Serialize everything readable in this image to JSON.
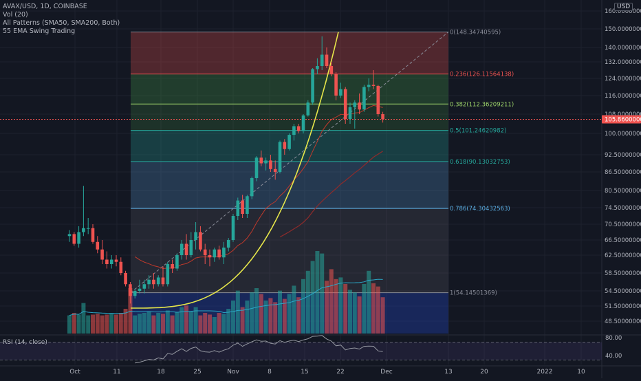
{
  "header": {
    "symbol_line": "AVAX/USD, 1D, COINBASE",
    "indicators": [
      "Vol (20)",
      "All Patterns (SMA50, SMA200, Both)",
      "55 EMA Swing Trading"
    ],
    "rsi_label": "RSI (14, close)",
    "currency_badge": "USD"
  },
  "colors": {
    "background": "#131722",
    "up": "#26a69a",
    "down": "#ef5350",
    "grid": "#1e222d",
    "axis_text": "#b2b5be",
    "last_price_bg": "#ef5350",
    "parabola": "#e6e64a",
    "ema": "#c0392b",
    "sma": "#8e2b2b",
    "vol_ma": "#2aa8c8",
    "rsi_line": "#9598a1"
  },
  "chart_data": {
    "type": "candlestick",
    "price_axis_ticks": [
      "160.00000000",
      "150.00000000",
      "140.00000000",
      "132.00000000",
      "124.00000000",
      "116.00000000",
      "108.00000000",
      "100.00000000",
      "92.50000000",
      "86.50000000",
      "80.50000000",
      "74.50000000",
      "70.50000000",
      "66.50000000",
      "62.50000000",
      "58.50000000",
      "54.50000000",
      "51.50000000",
      "48.50000000"
    ],
    "price_axis_values": [
      160,
      150,
      140,
      132,
      124,
      116,
      108,
      100,
      92.5,
      86.5,
      80.5,
      74.5,
      70.5,
      66.5,
      62.5,
      58.5,
      54.5,
      51.5,
      48.5
    ],
    "time_axis_labels": [
      "Oct",
      "11",
      "18",
      "25",
      "Nov",
      "8",
      "15",
      "22",
      "Dec",
      "13",
      "20",
      "2022",
      "10"
    ],
    "last_price": "105.86000000",
    "fibonacci": [
      {
        "label": "0(148.34740595)",
        "value": 148.3474,
        "color": "#8a8d99"
      },
      {
        "label": "0.236(126.11564138)",
        "value": 126.1156,
        "color": "#ef5350"
      },
      {
        "label": "0.382(112.36209211)",
        "value": 112.3621,
        "color": "#9ed46a"
      },
      {
        "label": "0.5(101.24620982)",
        "value": 101.2462,
        "color": "#26a69a"
      },
      {
        "label": "0.618(90.13032753)",
        "value": 90.1303,
        "color": "#26a69a"
      },
      {
        "label": "0.786(74.30432563)",
        "value": 74.3043,
        "color": "#5db2e8"
      },
      {
        "label": "1(54.14501369)",
        "value": 54.145,
        "color": "#8a8d99"
      }
    ],
    "rsi_axis_ticks": [
      "80.00",
      "40.00"
    ],
    "rsi_axis_values": [
      80,
      40
    ],
    "candles": [
      {
        "o": 67.5,
        "h": 69.0,
        "l": 66.0,
        "c": 68.0
      },
      {
        "o": 68.0,
        "h": 68.5,
        "l": 65.0,
        "c": 65.5
      },
      {
        "o": 65.5,
        "h": 70.0,
        "l": 64.5,
        "c": 68.5
      },
      {
        "o": 68.5,
        "h": 82.0,
        "l": 67.5,
        "c": 69.5
      },
      {
        "o": 69.5,
        "h": 72.0,
        "l": 68.0,
        "c": 69.5
      },
      {
        "o": 69.5,
        "h": 70.5,
        "l": 65.5,
        "c": 66.0
      },
      {
        "o": 66.0,
        "h": 67.5,
        "l": 63.0,
        "c": 64.0
      },
      {
        "o": 64.0,
        "h": 66.5,
        "l": 60.5,
        "c": 61.5
      },
      {
        "o": 61.5,
        "h": 63.5,
        "l": 59.5,
        "c": 60.5
      },
      {
        "o": 60.5,
        "h": 62.5,
        "l": 59.5,
        "c": 61.5
      },
      {
        "o": 61.5,
        "h": 62.5,
        "l": 60.0,
        "c": 61.0
      },
      {
        "o": 61.0,
        "h": 62.0,
        "l": 58.0,
        "c": 58.5
      },
      {
        "o": 58.5,
        "h": 59.0,
        "l": 55.5,
        "c": 56.0
      },
      {
        "o": 56.0,
        "h": 56.5,
        "l": 52.0,
        "c": 53.5
      },
      {
        "o": 53.5,
        "h": 55.0,
        "l": 53.0,
        "c": 54.5
      },
      {
        "o": 54.5,
        "h": 57.0,
        "l": 54.0,
        "c": 55.0
      },
      {
        "o": 55.0,
        "h": 57.0,
        "l": 54.0,
        "c": 56.0
      },
      {
        "o": 56.0,
        "h": 58.0,
        "l": 55.0,
        "c": 57.0
      },
      {
        "o": 57.0,
        "h": 58.5,
        "l": 55.0,
        "c": 56.0
      },
      {
        "o": 56.0,
        "h": 58.0,
        "l": 55.5,
        "c": 57.5
      },
      {
        "o": 57.5,
        "h": 60.0,
        "l": 55.5,
        "c": 56.0
      },
      {
        "o": 56.0,
        "h": 61.0,
        "l": 55.5,
        "c": 60.5
      },
      {
        "o": 60.5,
        "h": 61.5,
        "l": 58.5,
        "c": 59.5
      },
      {
        "o": 59.5,
        "h": 63.0,
        "l": 59.0,
        "c": 62.5
      },
      {
        "o": 62.5,
        "h": 66.5,
        "l": 61.5,
        "c": 65.5
      },
      {
        "o": 65.5,
        "h": 68.0,
        "l": 61.5,
        "c": 62.5
      },
      {
        "o": 62.5,
        "h": 68.5,
        "l": 62.0,
        "c": 66.5
      },
      {
        "o": 66.5,
        "h": 71.0,
        "l": 64.0,
        "c": 68.5
      },
      {
        "o": 68.5,
        "h": 70.0,
        "l": 63.5,
        "c": 64.0
      },
      {
        "o": 64.0,
        "h": 65.5,
        "l": 60.5,
        "c": 62.5
      },
      {
        "o": 62.5,
        "h": 64.0,
        "l": 60.0,
        "c": 62.0
      },
      {
        "o": 62.0,
        "h": 64.5,
        "l": 61.0,
        "c": 64.0
      },
      {
        "o": 64.0,
        "h": 65.0,
        "l": 61.5,
        "c": 62.0
      },
      {
        "o": 62.0,
        "h": 66.0,
        "l": 60.5,
        "c": 64.5
      },
      {
        "o": 64.5,
        "h": 67.0,
        "l": 63.5,
        "c": 66.5
      },
      {
        "o": 66.5,
        "h": 73.0,
        "l": 66.0,
        "c": 72.5
      },
      {
        "o": 72.5,
        "h": 78.0,
        "l": 71.5,
        "c": 77.0
      },
      {
        "o": 77.0,
        "h": 79.0,
        "l": 72.0,
        "c": 73.0
      },
      {
        "o": 73.0,
        "h": 79.0,
        "l": 72.0,
        "c": 78.5
      },
      {
        "o": 78.5,
        "h": 85.0,
        "l": 77.5,
        "c": 84.5
      },
      {
        "o": 84.5,
        "h": 92.0,
        "l": 83.5,
        "c": 91.5
      },
      {
        "o": 91.5,
        "h": 94.0,
        "l": 88.5,
        "c": 89.5
      },
      {
        "o": 89.5,
        "h": 91.5,
        "l": 87.0,
        "c": 90.5
      },
      {
        "o": 90.5,
        "h": 92.5,
        "l": 86.5,
        "c": 87.5
      },
      {
        "o": 87.5,
        "h": 90.5,
        "l": 84.0,
        "c": 86.5
      },
      {
        "o": 86.5,
        "h": 97.5,
        "l": 86.0,
        "c": 97.0
      },
      {
        "o": 97.0,
        "h": 98.0,
        "l": 92.5,
        "c": 94.5
      },
      {
        "o": 94.5,
        "h": 100.0,
        "l": 94.0,
        "c": 99.5
      },
      {
        "o": 99.5,
        "h": 104.0,
        "l": 97.5,
        "c": 103.0
      },
      {
        "o": 103.0,
        "h": 104.0,
        "l": 100.0,
        "c": 101.0
      },
      {
        "o": 101.0,
        "h": 108.0,
        "l": 100.0,
        "c": 107.5
      },
      {
        "o": 107.5,
        "h": 114.0,
        "l": 107.0,
        "c": 113.0
      },
      {
        "o": 113.0,
        "h": 129.0,
        "l": 112.0,
        "c": 128.5
      },
      {
        "o": 128.5,
        "h": 134.0,
        "l": 126.0,
        "c": 130.0
      },
      {
        "o": 130.0,
        "h": 146.0,
        "l": 128.0,
        "c": 136.0
      },
      {
        "o": 136.0,
        "h": 140.0,
        "l": 129.0,
        "c": 130.0
      },
      {
        "o": 130.0,
        "h": 132.0,
        "l": 125.0,
        "c": 126.0
      },
      {
        "o": 126.0,
        "h": 127.0,
        "l": 114.0,
        "c": 116.0
      },
      {
        "o": 116.0,
        "h": 122.0,
        "l": 115.0,
        "c": 119.0
      },
      {
        "o": 119.0,
        "h": 120.0,
        "l": 104.0,
        "c": 106.0
      },
      {
        "o": 106.0,
        "h": 113.0,
        "l": 104.0,
        "c": 111.0
      },
      {
        "o": 111.0,
        "h": 114.0,
        "l": 102.0,
        "c": 113.0
      },
      {
        "o": 113.0,
        "h": 117.0,
        "l": 108.0,
        "c": 110.0
      },
      {
        "o": 110.0,
        "h": 121.0,
        "l": 109.0,
        "c": 120.0
      },
      {
        "o": 120.0,
        "h": 124.0,
        "l": 118.0,
        "c": 121.0
      },
      {
        "o": 121.0,
        "h": 128.0,
        "l": 119.0,
        "c": 120.5
      },
      {
        "o": 120.5,
        "h": 121.0,
        "l": 107.0,
        "c": 108.0
      },
      {
        "o": 108.0,
        "h": 109.0,
        "l": 104.5,
        "c": 105.86
      }
    ],
    "volume_relative": [
      0.22,
      0.25,
      0.23,
      0.37,
      0.22,
      0.23,
      0.24,
      0.22,
      0.23,
      0.24,
      0.23,
      0.25,
      0.3,
      0.55,
      0.22,
      0.24,
      0.25,
      0.27,
      0.22,
      0.25,
      0.24,
      0.28,
      0.22,
      0.26,
      0.32,
      0.34,
      0.27,
      0.32,
      0.22,
      0.25,
      0.23,
      0.2,
      0.25,
      0.24,
      0.3,
      0.4,
      0.52,
      0.32,
      0.4,
      0.5,
      0.55,
      0.48,
      0.4,
      0.43,
      0.38,
      0.52,
      0.42,
      0.48,
      0.58,
      0.44,
      0.66,
      0.76,
      0.88,
      1.0,
      0.97,
      0.64,
      0.78,
      0.66,
      0.68,
      0.6,
      0.53,
      0.5,
      0.45,
      0.6,
      0.76,
      0.61,
      0.57,
      0.44
    ]
  }
}
